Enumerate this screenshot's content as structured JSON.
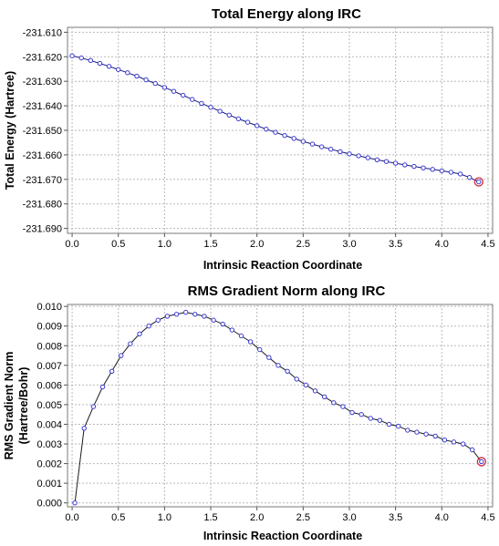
{
  "chart_data": [
    {
      "type": "line",
      "title": "Total Energy along IRC",
      "xlabel": "Intrinsic Reaction Coordinate",
      "ylabel": "Total Energy (Hartree)",
      "xlim": [
        -0.05,
        4.55
      ],
      "ylim": [
        -231.692,
        -231.608
      ],
      "xticks": [
        "0.0",
        "0.5",
        "1.0",
        "1.5",
        "2.0",
        "2.5",
        "3.0",
        "3.5",
        "4.0",
        "4.5"
      ],
      "yticks": [
        "-231.610",
        "-231.620",
        "-231.630",
        "-231.640",
        "-231.650",
        "-231.660",
        "-231.670",
        "-231.680",
        "-231.690"
      ],
      "grid": true,
      "line_color": "#1a1a7a",
      "marker_color": "#3b3bd1",
      "end_marker_color": "#d42a3c",
      "series": [
        {
          "x": [
            0.0,
            0.1,
            0.2,
            0.3,
            0.4,
            0.5,
            0.6,
            0.7,
            0.8,
            0.9,
            1.0,
            1.1,
            1.2,
            1.3,
            1.4,
            1.5,
            1.6,
            1.7,
            1.8,
            1.9,
            2.0,
            2.1,
            2.2,
            2.3,
            2.4,
            2.5,
            2.6,
            2.7,
            2.8,
            2.9,
            3.0,
            3.1,
            3.2,
            3.3,
            3.4,
            3.5,
            3.6,
            3.7,
            3.8,
            3.9,
            4.0,
            4.1,
            4.2,
            4.3,
            4.4
          ],
          "values": [
            -231.6196,
            -231.6205,
            -231.6215,
            -231.6227,
            -231.6239,
            -231.6252,
            -231.6265,
            -231.6279,
            -231.6294,
            -231.6309,
            -231.6325,
            -231.6341,
            -231.6357,
            -231.6374,
            -231.639,
            -231.6406,
            -231.6422,
            -231.6438,
            -231.6453,
            -231.6467,
            -231.6481,
            -231.6495,
            -231.6508,
            -231.6521,
            -231.6533,
            -231.6545,
            -231.6556,
            -231.6567,
            -231.6577,
            -231.6587,
            -231.6596,
            -231.6604,
            -231.6612,
            -231.662,
            -231.6627,
            -231.6634,
            -231.6641,
            -231.6647,
            -231.6653,
            -231.6659,
            -231.6665,
            -231.6671,
            -231.6678,
            -231.6692,
            -231.671
          ]
        }
      ]
    },
    {
      "type": "line",
      "title": "RMS Gradient Norm along IRC",
      "xlabel": "Intrinsic Reaction Coordinate",
      "ylabel": "RMS Gradient Norm",
      "ylabel2": "(Hartree/Bohr)",
      "xlim": [
        -0.05,
        4.55
      ],
      "ylim": [
        -0.0002,
        0.0101
      ],
      "xticks": [
        "0.0",
        "0.5",
        "1.0",
        "1.5",
        "2.0",
        "2.5",
        "3.0",
        "3.5",
        "4.0",
        "4.5"
      ],
      "yticks": [
        "0.000",
        "0.001",
        "0.002",
        "0.003",
        "0.004",
        "0.005",
        "0.006",
        "0.007",
        "0.008",
        "0.009",
        "0.010"
      ],
      "grid": true,
      "line_color": "#1a1a1a",
      "marker_color": "#3b3bd1",
      "end_marker_color": "#d42a3c",
      "series": [
        {
          "x": [
            0.03,
            0.13,
            0.23,
            0.33,
            0.43,
            0.53,
            0.63,
            0.73,
            0.83,
            0.93,
            1.03,
            1.13,
            1.23,
            1.33,
            1.43,
            1.53,
            1.63,
            1.73,
            1.83,
            1.93,
            2.03,
            2.13,
            2.23,
            2.33,
            2.43,
            2.53,
            2.63,
            2.73,
            2.83,
            2.93,
            3.03,
            3.13,
            3.23,
            3.33,
            3.43,
            3.53,
            3.63,
            3.73,
            3.83,
            3.93,
            4.03,
            4.13,
            4.23,
            4.33,
            4.43
          ],
          "values": [
            0.0,
            0.0038,
            0.0049,
            0.0059,
            0.0067,
            0.0075,
            0.0081,
            0.0086,
            0.009,
            0.0093,
            0.0095,
            0.0096,
            0.0097,
            0.0096,
            0.0095,
            0.0093,
            0.0091,
            0.0088,
            0.0085,
            0.0082,
            0.0078,
            0.0074,
            0.007,
            0.0067,
            0.0063,
            0.006,
            0.0057,
            0.0054,
            0.0051,
            0.0049,
            0.0046,
            0.0045,
            0.0043,
            0.0042,
            0.004,
            0.0039,
            0.0037,
            0.0036,
            0.0035,
            0.0034,
            0.0032,
            0.0031,
            0.003,
            0.0027,
            0.0021
          ]
        }
      ]
    }
  ]
}
